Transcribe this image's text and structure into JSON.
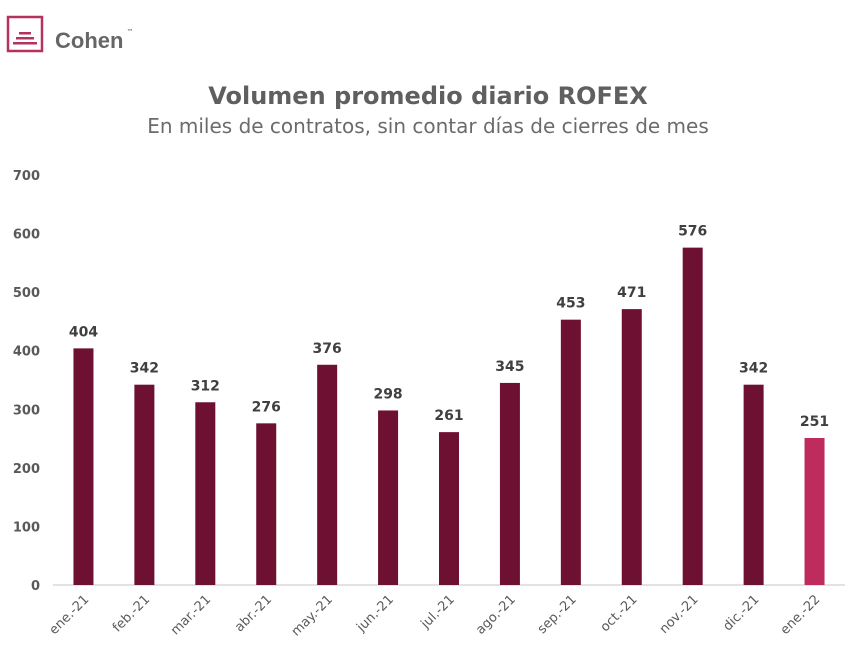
{
  "logo": {
    "text": "Cohen",
    "tm": "™",
    "color": "#b5325e"
  },
  "chart_data": {
    "type": "bar",
    "title": "Volumen promedio diario ROFEX",
    "subtitle": "En miles de contratos, sin contar días de cierres de mes",
    "xlabel": "",
    "ylabel": "",
    "ylim": [
      0,
      700
    ],
    "yticks": [
      0,
      100,
      200,
      300,
      400,
      500,
      600,
      700
    ],
    "grid": false,
    "categories": [
      "ene.-21",
      "feb.-21",
      "mar.-21",
      "abr.-21",
      "may.-21",
      "jun.-21",
      "jul.-21",
      "ago.-21",
      "sep.-21",
      "oct.-21",
      "nov.-21",
      "dic.-21",
      "ene.-22"
    ],
    "values": [
      404,
      342,
      312,
      276,
      376,
      298,
      261,
      345,
      453,
      471,
      576,
      342,
      251
    ],
    "colors": {
      "default": "#6d1032",
      "highlight": "#be2b5d"
    },
    "highlight_index": 12
  }
}
